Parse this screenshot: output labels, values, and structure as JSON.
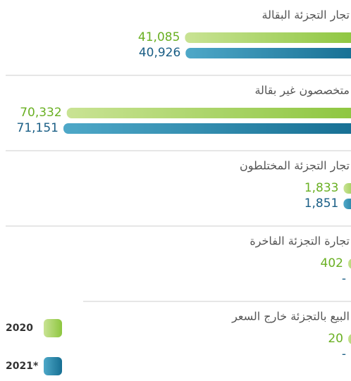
{
  "chart_data": {
    "type": "bar",
    "orientation": "horizontal",
    "direction": "rtl",
    "categories": [
      "تجار التجزئة البقالة",
      "متخصصون غير بقالة",
      "تجار التجزئة المختلطون",
      "تجارة التجزئة الفاخرة",
      "البيع بالتجزئة خارج السعر"
    ],
    "series": [
      {
        "name": "2020",
        "color": "#8dc63f",
        "label_color": "#6ab023",
        "values": [
          41085,
          70332,
          1833,
          402,
          20
        ],
        "value_labels": [
          "41,085",
          "70,332",
          "1,833",
          "402",
          "20"
        ]
      },
      {
        "name": "2021*",
        "color": "#1b7fa3",
        "label_color": "#1a5e85",
        "values": [
          40926,
          71151,
          1851,
          null,
          null
        ],
        "value_labels": [
          "40,926",
          "71,151",
          "1,851",
          "-",
          "-"
        ]
      }
    ]
  }
}
